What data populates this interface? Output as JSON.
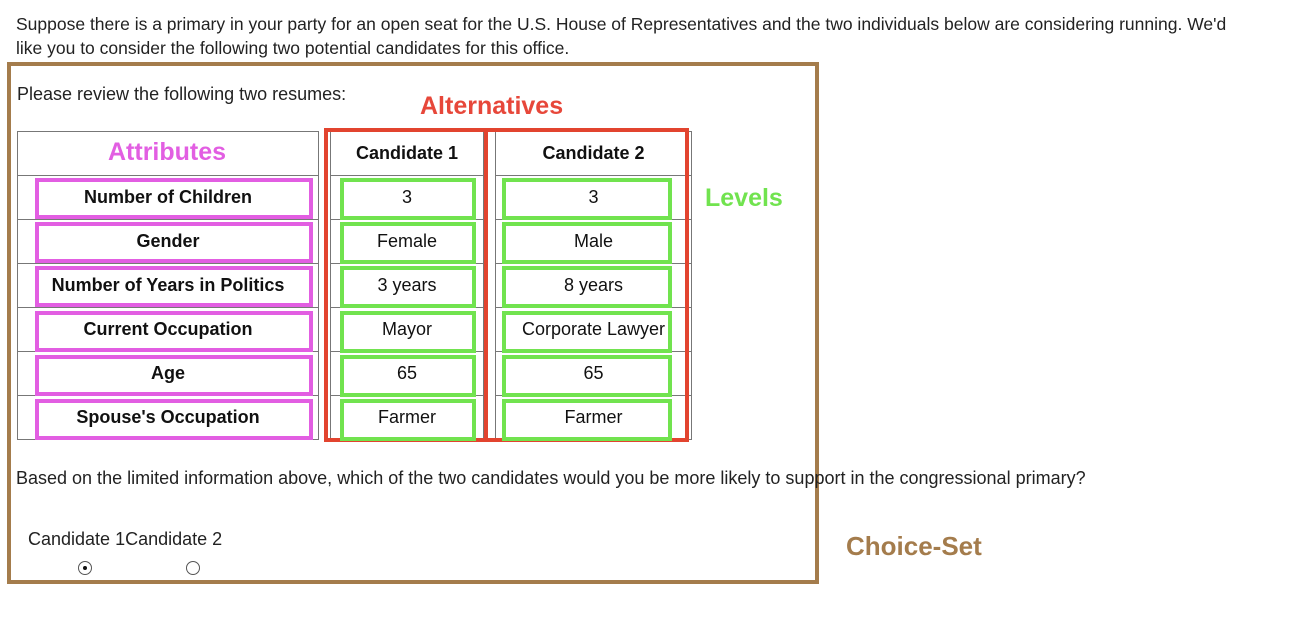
{
  "intro_text": "Suppose there is a primary in your party for an open seat for the U.S. House of Representatives and the two individuals below are considering running. We'd like you to consider the following two potential candidates for this office.",
  "review_label": "Please review the following two resumes:",
  "annotations": {
    "alternatives": "Alternatives",
    "attributes": "Attributes",
    "levels": "Levels",
    "choice_set": "Choice-Set"
  },
  "colors": {
    "attributes": "#e25ee2",
    "alternatives": "#e2442f",
    "levels": "#71e34f",
    "choice_set": "#a47c4c"
  },
  "table": {
    "headers": [
      "Candidate 1",
      "Candidate 2"
    ],
    "rows": [
      {
        "attribute": "Number of Children",
        "c1": "3",
        "c2": "3"
      },
      {
        "attribute": "Gender",
        "c1": "Female",
        "c2": "Male"
      },
      {
        "attribute": "Number of Years in Politics",
        "c1": "3 years",
        "c2": "8 years"
      },
      {
        "attribute": "Current Occupation",
        "c1": "Mayor",
        "c2": "Corporate Lawyer"
      },
      {
        "attribute": "Age",
        "c1": "65",
        "c2": "65"
      },
      {
        "attribute": "Spouse's Occupation",
        "c1": "Farmer",
        "c2": "Farmer"
      }
    ]
  },
  "question": "Based on the limited information above, which of the two candidates would you be more likely to support in the congressional primary?",
  "options": [
    {
      "label": "Candidate 1",
      "selected": true
    },
    {
      "label": "Candidate 2",
      "selected": false
    }
  ]
}
